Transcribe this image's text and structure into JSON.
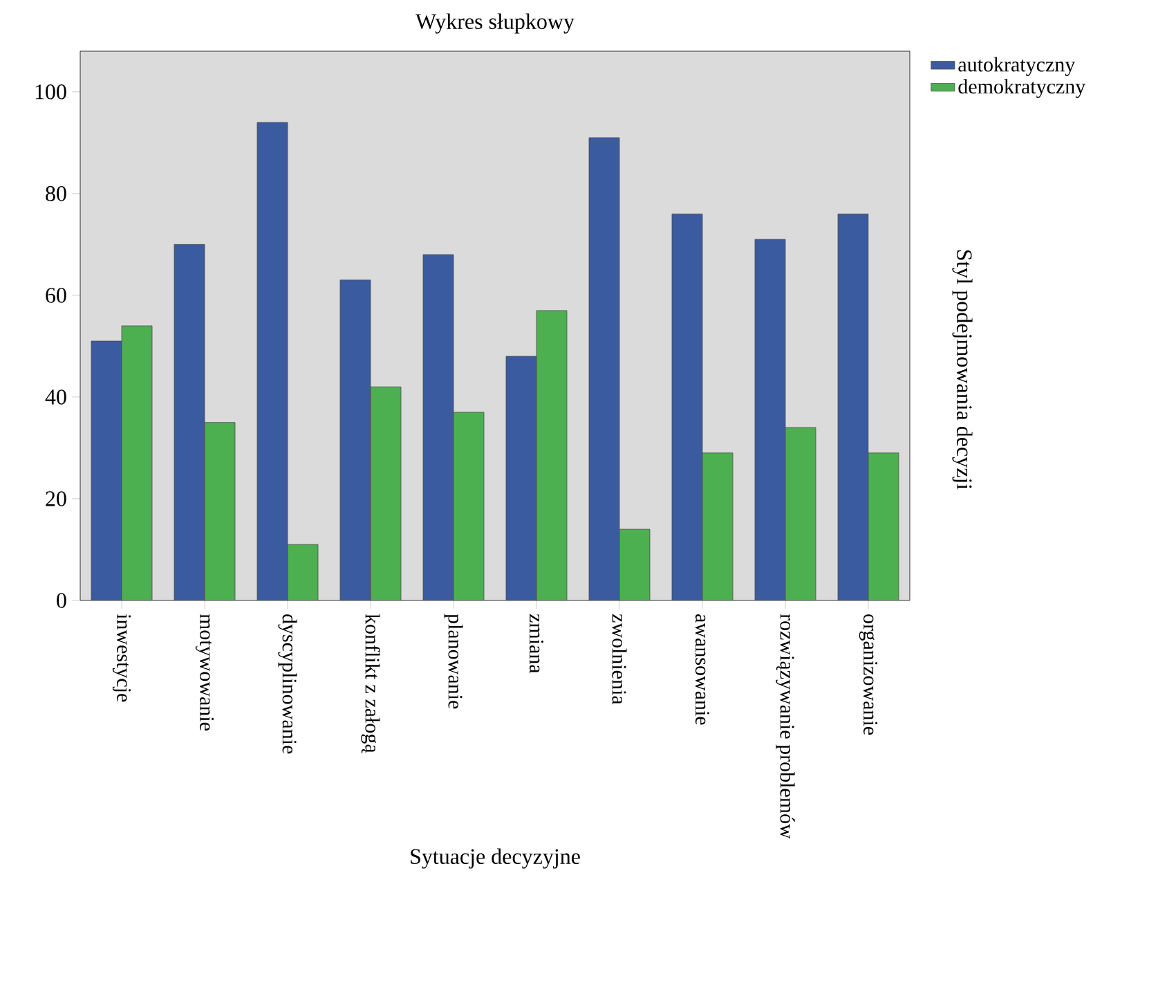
{
  "chart_data": {
    "type": "bar",
    "title": "Wykres słupkowy",
    "xlabel": "Sytuacje decyzyjne",
    "legend_title": "Styl podejmowania decyzji",
    "categories": [
      "inwestycje",
      "motywowanie",
      "dyscyplinowanie",
      "konflikt z załogą",
      "planowanie",
      "zmiana",
      "zwolnienia",
      "awansowanie",
      "rozwiązywanie problemów",
      "organizowanie"
    ],
    "series": [
      {
        "name": "autokratyczny",
        "color": "#3a5ba0",
        "values": [
          51,
          70,
          94,
          63,
          68,
          48,
          91,
          76,
          71,
          76
        ]
      },
      {
        "name": "demokratyczny",
        "color": "#4caf50",
        "values": [
          54,
          35,
          11,
          42,
          37,
          57,
          14,
          29,
          34,
          29
        ]
      }
    ],
    "ylim": [
      0,
      108
    ],
    "yticks": [
      0,
      20,
      40,
      60,
      80,
      100
    ],
    "grid": false,
    "legend": "top right"
  }
}
